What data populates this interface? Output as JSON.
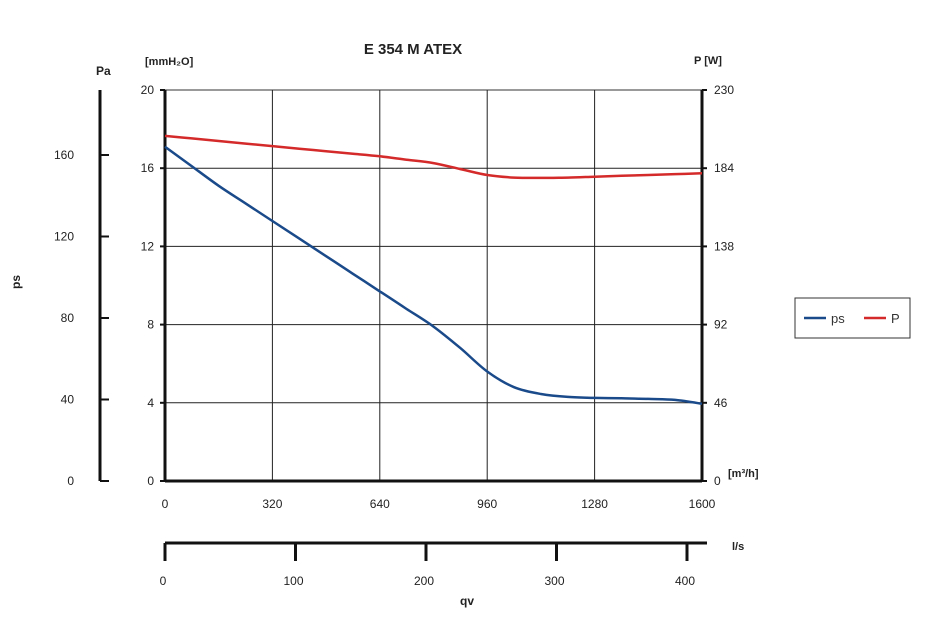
{
  "chart_data": {
    "type": "line",
    "title": "E 354 M ATEX",
    "x": [
      0,
      80,
      160,
      240,
      320,
      400,
      480,
      560,
      640,
      720,
      800,
      880,
      960,
      1040,
      1120,
      1200,
      1280,
      1360,
      1440,
      1520,
      1600
    ],
    "x_unit_label": "[m³/h]",
    "xlim": [
      0,
      1600
    ],
    "xticks": [
      "0",
      "320",
      "640",
      "960",
      "1280",
      "1600"
    ],
    "x_secondary": {
      "unit_label": "l/s",
      "ticks": [
        "0",
        "100",
        "200",
        "300",
        "400"
      ]
    },
    "xlabel": "qv",
    "left_axis": {
      "unit_label": "[mmH₂O]",
      "ylim": [
        0,
        20
      ],
      "ticks": [
        "0",
        "4",
        "8",
        "12",
        "16",
        "20"
      ]
    },
    "outer_left_axis": {
      "unit_label": "Pa",
      "label": "ps",
      "ticks": [
        "0",
        "40",
        "80",
        "120",
        "160"
      ]
    },
    "right_axis": {
      "unit_label": "P [W]",
      "ylim": [
        0,
        230
      ],
      "ticks": [
        "0",
        "46",
        "92",
        "138",
        "184",
        "230"
      ]
    },
    "series": [
      {
        "name": "ps",
        "axis": "left",
        "color": "#1a4a8a",
        "values": [
          17.1,
          16.1,
          15.1,
          14.2,
          13.3,
          12.4,
          11.5,
          10.6,
          9.7,
          8.8,
          7.9,
          6.8,
          5.6,
          4.8,
          4.45,
          4.3,
          4.25,
          4.23,
          4.2,
          4.15,
          3.95
        ]
      },
      {
        "name": "P",
        "axis": "right",
        "color": "#d42a2a",
        "values": [
          203,
          201.5,
          200,
          198.5,
          197,
          195.5,
          194,
          192.5,
          191,
          189,
          187,
          183.5,
          180,
          178.5,
          178.3,
          178.5,
          179,
          179.5,
          180,
          180.5,
          181
        ]
      }
    ],
    "grid": true,
    "legend_position": "right"
  }
}
